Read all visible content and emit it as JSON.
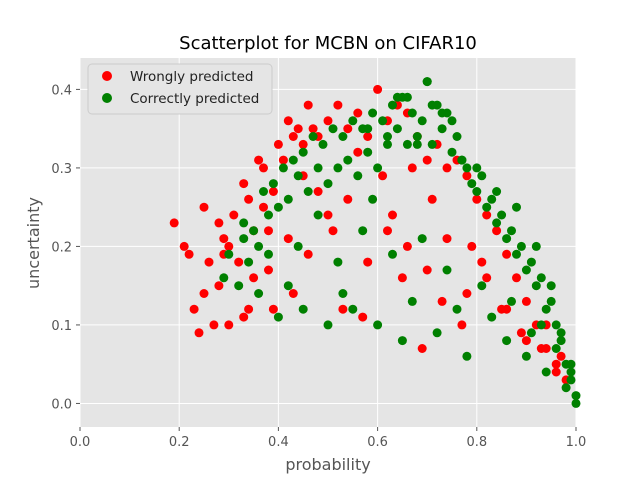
{
  "chart_data": {
    "type": "scatter",
    "title": "Scatterplot for MCBN on CIFAR10",
    "xlabel": "probability",
    "ylabel": "uncertainty",
    "xlim": [
      0.0,
      1.0
    ],
    "ylim": [
      -0.03,
      0.44
    ],
    "xticks": [
      "0.0",
      "0.2",
      "0.4",
      "0.6",
      "0.8",
      "1.0"
    ],
    "yticks": [
      "0.0",
      "0.1",
      "0.2",
      "0.3",
      "0.4"
    ],
    "grid": true,
    "legend_position": "top-left",
    "background": "#e5e5e5",
    "series": [
      {
        "name": "Wrongly predicted",
        "color": "#ff0000",
        "x": [
          0.19,
          0.21,
          0.22,
          0.23,
          0.24,
          0.25,
          0.26,
          0.27,
          0.28,
          0.28,
          0.29,
          0.3,
          0.31,
          0.32,
          0.33,
          0.34,
          0.35,
          0.36,
          0.37,
          0.38,
          0.39,
          0.4,
          0.41,
          0.42,
          0.43,
          0.44,
          0.45,
          0.46,
          0.47,
          0.48,
          0.5,
          0.52,
          0.54,
          0.56,
          0.58,
          0.6,
          0.62,
          0.64,
          0.66,
          0.68,
          0.7,
          0.72,
          0.74,
          0.76,
          0.78,
          0.8,
          0.82,
          0.84,
          0.86,
          0.88,
          0.9,
          0.92,
          0.94,
          0.96,
          0.98,
          0.25,
          0.3,
          0.35,
          0.38,
          0.42,
          0.46,
          0.5,
          0.54,
          0.58,
          0.62,
          0.66,
          0.7,
          0.74,
          0.78,
          0.82,
          0.86,
          0.9,
          0.94,
          0.97,
          0.33,
          0.37,
          0.43,
          0.48,
          0.53,
          0.57,
          0.61,
          0.65,
          0.69,
          0.73,
          0.77,
          0.81,
          0.85,
          0.89,
          0.93,
          0.96,
          0.29,
          0.34,
          0.39,
          0.45,
          0.51,
          0.56,
          0.63,
          0.67,
          0.71,
          0.79
        ],
        "y": [
          0.23,
          0.2,
          0.19,
          0.12,
          0.09,
          0.25,
          0.18,
          0.1,
          0.23,
          0.15,
          0.21,
          0.1,
          0.24,
          0.18,
          0.28,
          0.26,
          0.22,
          0.31,
          0.3,
          0.17,
          0.12,
          0.33,
          0.31,
          0.36,
          0.34,
          0.35,
          0.33,
          0.38,
          0.35,
          0.34,
          0.36,
          0.38,
          0.35,
          0.37,
          0.34,
          0.4,
          0.36,
          0.38,
          0.37,
          0.34,
          0.31,
          0.33,
          0.3,
          0.31,
          0.29,
          0.26,
          0.24,
          0.22,
          0.19,
          0.16,
          0.13,
          0.1,
          0.07,
          0.05,
          0.03,
          0.14,
          0.2,
          0.16,
          0.22,
          0.21,
          0.19,
          0.24,
          0.26,
          0.18,
          0.22,
          0.2,
          0.17,
          0.21,
          0.14,
          0.16,
          0.12,
          0.08,
          0.1,
          0.06,
          0.11,
          0.25,
          0.14,
          0.27,
          0.12,
          0.11,
          0.29,
          0.16,
          0.07,
          0.13,
          0.1,
          0.18,
          0.12,
          0.09,
          0.07,
          0.04,
          0.19,
          0.12,
          0.27,
          0.29,
          0.22,
          0.32,
          0.24,
          0.3,
          0.26,
          0.2
        ]
      },
      {
        "name": "Correctly predicted",
        "color": "#008000",
        "x": [
          0.29,
          0.3,
          0.32,
          0.33,
          0.34,
          0.35,
          0.36,
          0.37,
          0.38,
          0.39,
          0.4,
          0.41,
          0.42,
          0.43,
          0.44,
          0.45,
          0.46,
          0.47,
          0.48,
          0.49,
          0.5,
          0.51,
          0.52,
          0.53,
          0.54,
          0.55,
          0.56,
          0.57,
          0.58,
          0.59,
          0.6,
          0.61,
          0.62,
          0.63,
          0.64,
          0.65,
          0.66,
          0.67,
          0.68,
          0.69,
          0.7,
          0.71,
          0.72,
          0.73,
          0.74,
          0.75,
          0.76,
          0.77,
          0.78,
          0.79,
          0.8,
          0.81,
          0.82,
          0.83,
          0.84,
          0.85,
          0.86,
          0.87,
          0.88,
          0.89,
          0.9,
          0.91,
          0.92,
          0.93,
          0.94,
          0.95,
          0.96,
          0.97,
          0.98,
          0.99,
          1.0,
          0.64,
          0.66,
          0.71,
          0.73,
          0.75,
          0.7,
          0.58,
          0.62,
          0.68,
          0.77,
          0.8,
          0.84,
          0.88,
          0.92,
          0.95,
          0.97,
          0.99,
          0.36,
          0.4,
          0.45,
          0.5,
          0.55,
          0.6,
          0.65,
          0.72,
          0.78,
          0.86,
          0.9,
          0.94,
          0.98,
          1.0,
          0.44,
          0.52,
          0.57,
          0.63,
          0.69,
          0.74,
          0.81,
          0.87,
          0.93,
          0.96,
          0.99,
          0.33,
          0.38,
          0.42,
          0.48,
          0.53,
          0.59,
          0.67,
          0.76,
          0.83,
          0.91
        ],
        "y": [
          0.16,
          0.19,
          0.15,
          0.21,
          0.18,
          0.22,
          0.2,
          0.27,
          0.24,
          0.28,
          0.25,
          0.3,
          0.26,
          0.31,
          0.29,
          0.32,
          0.27,
          0.34,
          0.3,
          0.33,
          0.28,
          0.35,
          0.3,
          0.34,
          0.31,
          0.36,
          0.29,
          0.35,
          0.32,
          0.37,
          0.3,
          0.36,
          0.33,
          0.38,
          0.35,
          0.39,
          0.33,
          0.37,
          0.34,
          0.36,
          0.41,
          0.33,
          0.38,
          0.35,
          0.37,
          0.32,
          0.34,
          0.31,
          0.3,
          0.28,
          0.27,
          0.29,
          0.25,
          0.26,
          0.23,
          0.24,
          0.21,
          0.22,
          0.19,
          0.2,
          0.17,
          0.18,
          0.15,
          0.16,
          0.12,
          0.13,
          0.1,
          0.08,
          0.05,
          0.03,
          0.01,
          0.39,
          0.39,
          0.38,
          0.37,
          0.36,
          0.41,
          0.35,
          0.34,
          0.33,
          0.31,
          0.3,
          0.27,
          0.25,
          0.2,
          0.15,
          0.09,
          0.04,
          0.14,
          0.11,
          0.12,
          0.1,
          0.12,
          0.1,
          0.08,
          0.09,
          0.06,
          0.08,
          0.06,
          0.04,
          0.02,
          0.0,
          0.2,
          0.18,
          0.22,
          0.19,
          0.21,
          0.17,
          0.15,
          0.13,
          0.1,
          0.07,
          0.05,
          0.23,
          0.19,
          0.15,
          0.24,
          0.14,
          0.26,
          0.13,
          0.12,
          0.11,
          0.09
        ]
      }
    ]
  }
}
